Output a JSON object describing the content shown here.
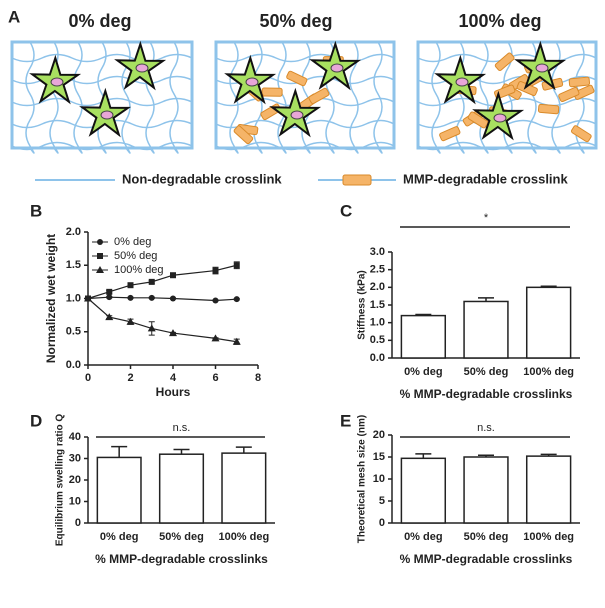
{
  "panel_a": {
    "label": "A",
    "titles": [
      "0% deg",
      "50% deg",
      "100% deg"
    ],
    "legend": [
      "Non-degradable crosslink",
      "MMP-degradable crosslink"
    ]
  },
  "chart_data": [
    {
      "type": "line",
      "label": "B",
      "xlabel": "Hours",
      "ylabel": "Normalized wet weight",
      "x": [
        0,
        1,
        2,
        3,
        4,
        6,
        7
      ],
      "series": [
        {
          "name": "0% deg",
          "color": "#222222",
          "marker": "circle",
          "values": [
            1.0,
            1.02,
            1.01,
            1.01,
            1.0,
            0.97,
            0.99
          ],
          "errors": [
            0.02,
            0.01,
            0.01,
            0.01,
            0.01,
            0.01,
            0.01
          ]
        },
        {
          "name": "50% deg",
          "color": "#222222",
          "marker": "square",
          "values": [
            1.0,
            1.1,
            1.2,
            1.25,
            1.35,
            1.42,
            1.5
          ],
          "errors": [
            0.02,
            0.02,
            0.02,
            0.02,
            0.02,
            0.05,
            0.05
          ]
        },
        {
          "name": "100% deg",
          "color": "#222222",
          "marker": "triangle",
          "values": [
            1.0,
            0.72,
            0.65,
            0.55,
            0.48,
            0.4,
            0.35
          ],
          "errors": [
            0.02,
            0.02,
            0.04,
            0.1,
            0.01,
            0.01,
            0.04
          ]
        }
      ],
      "xlim": [
        0,
        8
      ],
      "xticks": [
        0,
        2,
        4,
        6,
        8
      ],
      "ylim": [
        0,
        2
      ],
      "yticks": [
        {
          "value": 0,
          "label": "0.0"
        },
        0.5,
        {
          "value": 1,
          "label": "1.0"
        },
        1.5,
        {
          "value": 2,
          "label": "2.0"
        }
      ],
      "legend": "upper-left"
    },
    {
      "type": "bar",
      "label": "C",
      "xlabel": "% MMP-degradable crosslinks",
      "ylabel": "Stiffness (kPa)",
      "categories": [
        "0% deg",
        "50% deg",
        "100% deg"
      ],
      "values": [
        1.2,
        1.6,
        2.0
      ],
      "errors": [
        0.03,
        0.1,
        0.03
      ],
      "color": "#ffffff",
      "annotation": "*",
      "ylim": [
        0,
        3
      ],
      "yticks": [
        {
          "value": 0,
          "label": "0.0"
        },
        0.5,
        {
          "value": 1,
          "label": "1.0"
        },
        1.5,
        {
          "value": 2,
          "label": "2.0"
        },
        2.5,
        {
          "value": 3,
          "label": "3.0"
        }
      ]
    },
    {
      "type": "bar",
      "label": "D",
      "xlabel": "% MMP-degradable crosslinks",
      "ylabel": "Equilibrium swelling ratio Q",
      "categories": [
        "0% deg",
        "50% deg",
        "100% deg"
      ],
      "values": [
        30.5,
        32,
        32.5
      ],
      "errors": [
        5,
        2.2,
        2.8
      ],
      "color": "#ffffff",
      "annotation": "n.s.",
      "ylim": [
        0,
        40
      ],
      "yticks": [
        0,
        10,
        20,
        30,
        40
      ]
    },
    {
      "type": "bar",
      "label": "E",
      "xlabel": "% MMP-degradable crosslinks",
      "ylabel": "Theoretical mesh size (nm)",
      "categories": [
        "0% deg",
        "50% deg",
        "100% deg"
      ],
      "values": [
        14.7,
        15,
        15.2
      ],
      "errors": [
        1,
        0.4,
        0.4
      ],
      "color": "#ffffff",
      "annotation": "n.s.",
      "ylim": [
        0,
        20
      ],
      "yticks": [
        0,
        5,
        10,
        15,
        20
      ]
    }
  ]
}
